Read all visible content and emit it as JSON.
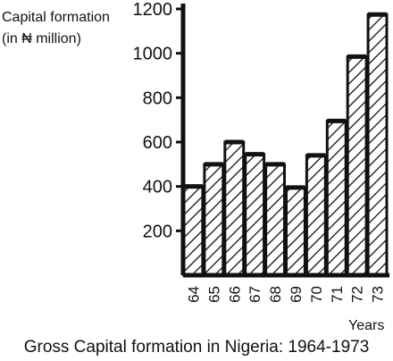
{
  "chart_data": {
    "type": "bar",
    "ylabel_line1": "Capital formation",
    "ylabel_line2": "(in ₦ million)",
    "xlabel": "Years",
    "caption": "Gross Capital formation in Nigeria: 1964-1973",
    "categories": [
      "64",
      "65",
      "66",
      "67",
      "68",
      "69",
      "70",
      "71",
      "72",
      "73"
    ],
    "values": [
      400,
      500,
      600,
      545,
      500,
      395,
      540,
      695,
      985,
      1175
    ],
    "ylim": [
      0,
      1200
    ],
    "yticks": [
      200,
      400,
      600,
      800,
      1000,
      1200
    ],
    "grid": false,
    "bar_fill": "hatched",
    "colors": {
      "ink": "#111111",
      "background": "#ffffff"
    }
  }
}
